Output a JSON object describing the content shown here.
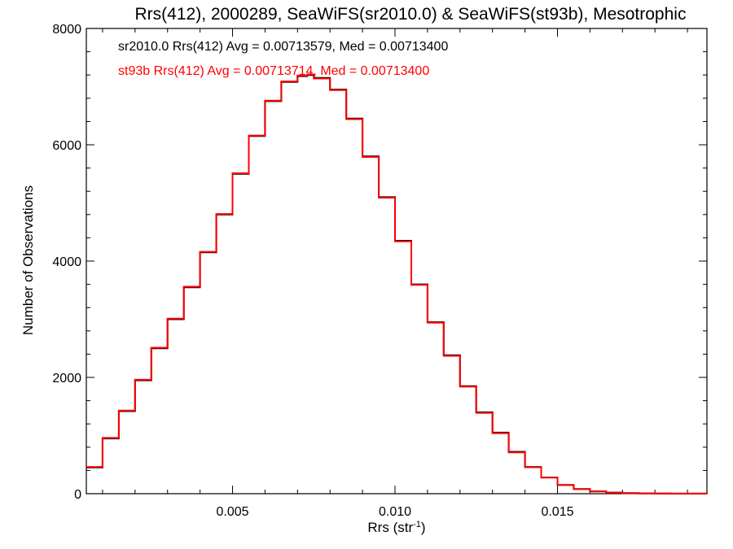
{
  "chart_data": {
    "type": "line",
    "title": "Rrs(412), 2000289, SeaWiFS(sr2010.0) & SeaWiFS(st93b), Mesotrophic",
    "xlabel": "Rrs (str",
    "xlabel_sup": "-1",
    "xlabel_end": ")",
    "ylabel": "Number of Observations",
    "xlim": [
      0.0005,
      0.0196
    ],
    "ylim": [
      0,
      8000
    ],
    "x_ticks": [
      0.005,
      0.01,
      0.015
    ],
    "x_tick_labels": [
      "0.005",
      "0.010",
      "0.015"
    ],
    "y_ticks": [
      0,
      2000,
      4000,
      6000,
      8000
    ],
    "y_tick_labels": [
      "0",
      "2000",
      "4000",
      "6000",
      "8000"
    ],
    "grid": false,
    "series_style": "histogram-step",
    "annotations": [
      "sr2010.0 Rrs(412) Avg = 0.00713579, Med = 0.00713400",
      "st93b Rrs(412) Avg = 0.00713714, Med = 0.00713400"
    ],
    "series": [
      {
        "color": "#000000",
        "x": [
          0.0005,
          0.001,
          0.0015,
          0.002,
          0.0025,
          0.003,
          0.0035,
          0.004,
          0.0045,
          0.005,
          0.0055,
          0.006,
          0.0065,
          0.007,
          0.0073,
          0.0075,
          0.008,
          0.0085,
          0.009,
          0.0095,
          0.01,
          0.0105,
          0.011,
          0.0115,
          0.012,
          0.0125,
          0.013,
          0.0135,
          0.014,
          0.0145,
          0.015,
          0.0155,
          0.016,
          0.0165,
          0.017,
          0.0175,
          0.018,
          0.0185,
          0.019,
          0.0196
        ],
        "y": [
          450,
          950,
          1420,
          1950,
          2500,
          3000,
          3550,
          4150,
          4800,
          5500,
          6150,
          6750,
          7080,
          7180,
          7200,
          7150,
          6950,
          6450,
          5800,
          5100,
          4350,
          3600,
          2950,
          2380,
          1850,
          1400,
          1050,
          720,
          460,
          280,
          150,
          80,
          40,
          20,
          10,
          5,
          3,
          2,
          1,
          0
        ]
      },
      {
        "color": "#ff0000",
        "x": [
          0.0005,
          0.001,
          0.0015,
          0.002,
          0.0025,
          0.003,
          0.0035,
          0.004,
          0.0045,
          0.005,
          0.0055,
          0.006,
          0.0065,
          0.007,
          0.0073,
          0.0075,
          0.008,
          0.0085,
          0.009,
          0.0095,
          0.01,
          0.0105,
          0.011,
          0.0115,
          0.012,
          0.0125,
          0.013,
          0.0135,
          0.014,
          0.0145,
          0.015,
          0.0155,
          0.016,
          0.0165,
          0.017,
          0.0175,
          0.018,
          0.0185,
          0.019,
          0.0196
        ],
        "y": [
          460,
          960,
          1430,
          1960,
          2510,
          3010,
          3560,
          4160,
          4810,
          5510,
          6160,
          6760,
          7090,
          7190,
          7210,
          7140,
          6940,
          6440,
          5790,
          5090,
          4340,
          3590,
          2940,
          2370,
          1840,
          1390,
          1040,
          710,
          455,
          275,
          148,
          78,
          38,
          18,
          9,
          5,
          3,
          2,
          1,
          0
        ]
      }
    ]
  }
}
